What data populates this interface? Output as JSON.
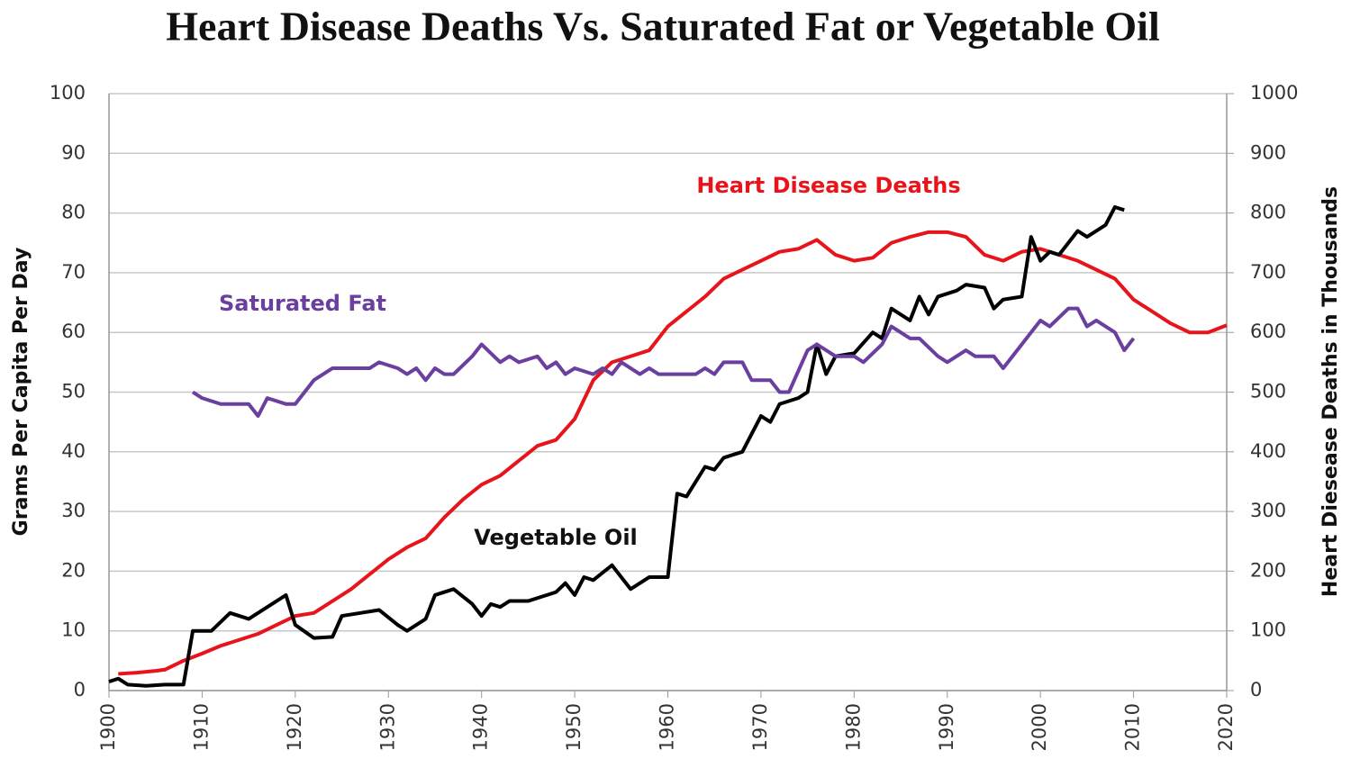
{
  "chart_data": {
    "type": "line",
    "title": "Heart Disease Deaths Vs. Saturated Fat or Vegetable Oil",
    "ylabel": "Grams Per Capita Per Day",
    "y2label": "Heart Diesease Deaths in Thousands",
    "xlim": [
      1900,
      2020
    ],
    "xticks": [
      1900,
      1910,
      1920,
      1930,
      1940,
      1950,
      1960,
      1970,
      1980,
      1990,
      2000,
      2010,
      2020
    ],
    "ylim": [
      0,
      100
    ],
    "yticks": [
      0,
      10,
      20,
      30,
      40,
      50,
      60,
      70,
      80,
      90,
      100
    ],
    "y2lim": [
      0,
      1000
    ],
    "y2ticks": [
      0,
      100,
      200,
      300,
      400,
      500,
      600,
      700,
      800,
      900,
      1000
    ],
    "grid": true,
    "series": [
      {
        "name": "Heart Disease Deaths",
        "color": "#e8141c",
        "axis": "y2",
        "x": [
          1901,
          1903,
          1905,
          1906,
          1908,
          1910,
          1912,
          1914,
          1916,
          1918,
          1920,
          1922,
          1924,
          1926,
          1928,
          1930,
          1932,
          1934,
          1936,
          1938,
          1940,
          1942,
          1944,
          1946,
          1948,
          1950,
          1952,
          1954,
          1956,
          1958,
          1960,
          1962,
          1964,
          1966,
          1968,
          1970,
          1972,
          1974,
          1976,
          1978,
          1980,
          1982,
          1984,
          1986,
          1988,
          1990,
          1992,
          1994,
          1996,
          1998,
          2000,
          2002,
          2004,
          2006,
          2008,
          2010,
          2012,
          2014,
          2016,
          2018,
          2020
        ],
        "values": [
          28,
          30,
          33,
          35,
          50,
          62,
          75,
          85,
          95,
          110,
          125,
          130,
          150,
          170,
          195,
          220,
          240,
          255,
          290,
          320,
          345,
          360,
          385,
          410,
          420,
          455,
          520,
          550,
          560,
          570,
          610,
          635,
          660,
          690,
          705,
          720,
          735,
          740,
          755,
          730,
          720,
          725,
          750,
          760,
          768,
          768,
          760,
          730,
          720,
          735,
          740,
          730,
          720,
          705,
          690,
          655,
          635,
          615,
          600,
          600,
          612
        ]
      },
      {
        "name": "Vegetable Oil",
        "color": "#000000",
        "x": [
          1900,
          1901,
          1902,
          1904,
          1906,
          1908,
          1909,
          1911,
          1913,
          1915,
          1917,
          1919,
          1920,
          1922,
          1924,
          1925,
          1927,
          1929,
          1931,
          1932,
          1934,
          1935,
          1937,
          1939,
          1940,
          1941,
          1942,
          1943,
          1945,
          1946,
          1948,
          1949,
          1950,
          1951,
          1952,
          1954,
          1956,
          1958,
          1960,
          1961,
          1962,
          1964,
          1965,
          1966,
          1968,
          1970,
          1971,
          1972,
          1974,
          1975,
          1976,
          1977,
          1978,
          1980,
          1982,
          1983,
          1984,
          1986,
          1987,
          1988,
          1989,
          1991,
          1992,
          1994,
          1995,
          1996,
          1998,
          1999,
          2000,
          2001,
          2002,
          2004,
          2005,
          2007,
          2008,
          2009
        ],
        "values": [
          1.5,
          2,
          1,
          0.8,
          1,
          1,
          10,
          10,
          13,
          12,
          14,
          16,
          11,
          8.8,
          9,
          12.5,
          13,
          13.5,
          11,
          10,
          12,
          16,
          17,
          14.5,
          12.5,
          14.5,
          14,
          15,
          15,
          15.5,
          16.5,
          18,
          16,
          19,
          18.5,
          21,
          17,
          19,
          19,
          33,
          32.5,
          37.5,
          37,
          39,
          40,
          46,
          45,
          48,
          49,
          50,
          58,
          53,
          56,
          56.5,
          60,
          59,
          64,
          62,
          66,
          63,
          66,
          67,
          68,
          67.5,
          64,
          65.5,
          66,
          76,
          72,
          73.5,
          73,
          77,
          76,
          78,
          81,
          80.5
        ]
      },
      {
        "name": "Saturated Fat",
        "color": "#6a3fa0",
        "x": [
          1909,
          1910,
          1912,
          1915,
          1916,
          1917,
          1919,
          1920,
          1922,
          1924,
          1928,
          1929,
          1931,
          1932,
          1933,
          1934,
          1935,
          1936,
          1937,
          1939,
          1940,
          1942,
          1943,
          1944,
          1946,
          1947,
          1948,
          1949,
          1950,
          1952,
          1953,
          1954,
          1955,
          1957,
          1958,
          1959,
          1963,
          1964,
          1965,
          1966,
          1968,
          1969,
          1971,
          1972,
          1973,
          1975,
          1976,
          1978,
          1980,
          1981,
          1983,
          1984,
          1986,
          1987,
          1989,
          1990,
          1992,
          1993,
          1995,
          1996,
          1997,
          1998,
          2000,
          2001,
          2003,
          2004,
          2005,
          2006,
          2008,
          2009,
          2010
        ],
        "values": [
          50,
          49,
          48,
          48,
          46,
          49,
          48,
          48,
          52,
          54,
          54,
          55,
          54,
          53,
          54,
          52,
          54,
          53,
          53,
          56,
          58,
          55,
          56,
          55,
          56,
          54,
          55,
          53,
          54,
          53,
          54,
          53,
          55,
          53,
          54,
          53,
          53,
          54,
          53,
          55,
          55,
          52,
          52,
          50,
          50,
          57,
          58,
          56,
          56,
          55,
          58,
          61,
          59,
          59,
          56,
          55,
          57,
          56,
          56,
          54,
          56,
          58,
          62,
          61,
          64,
          64,
          61,
          62,
          60,
          57,
          59
        ]
      }
    ]
  }
}
